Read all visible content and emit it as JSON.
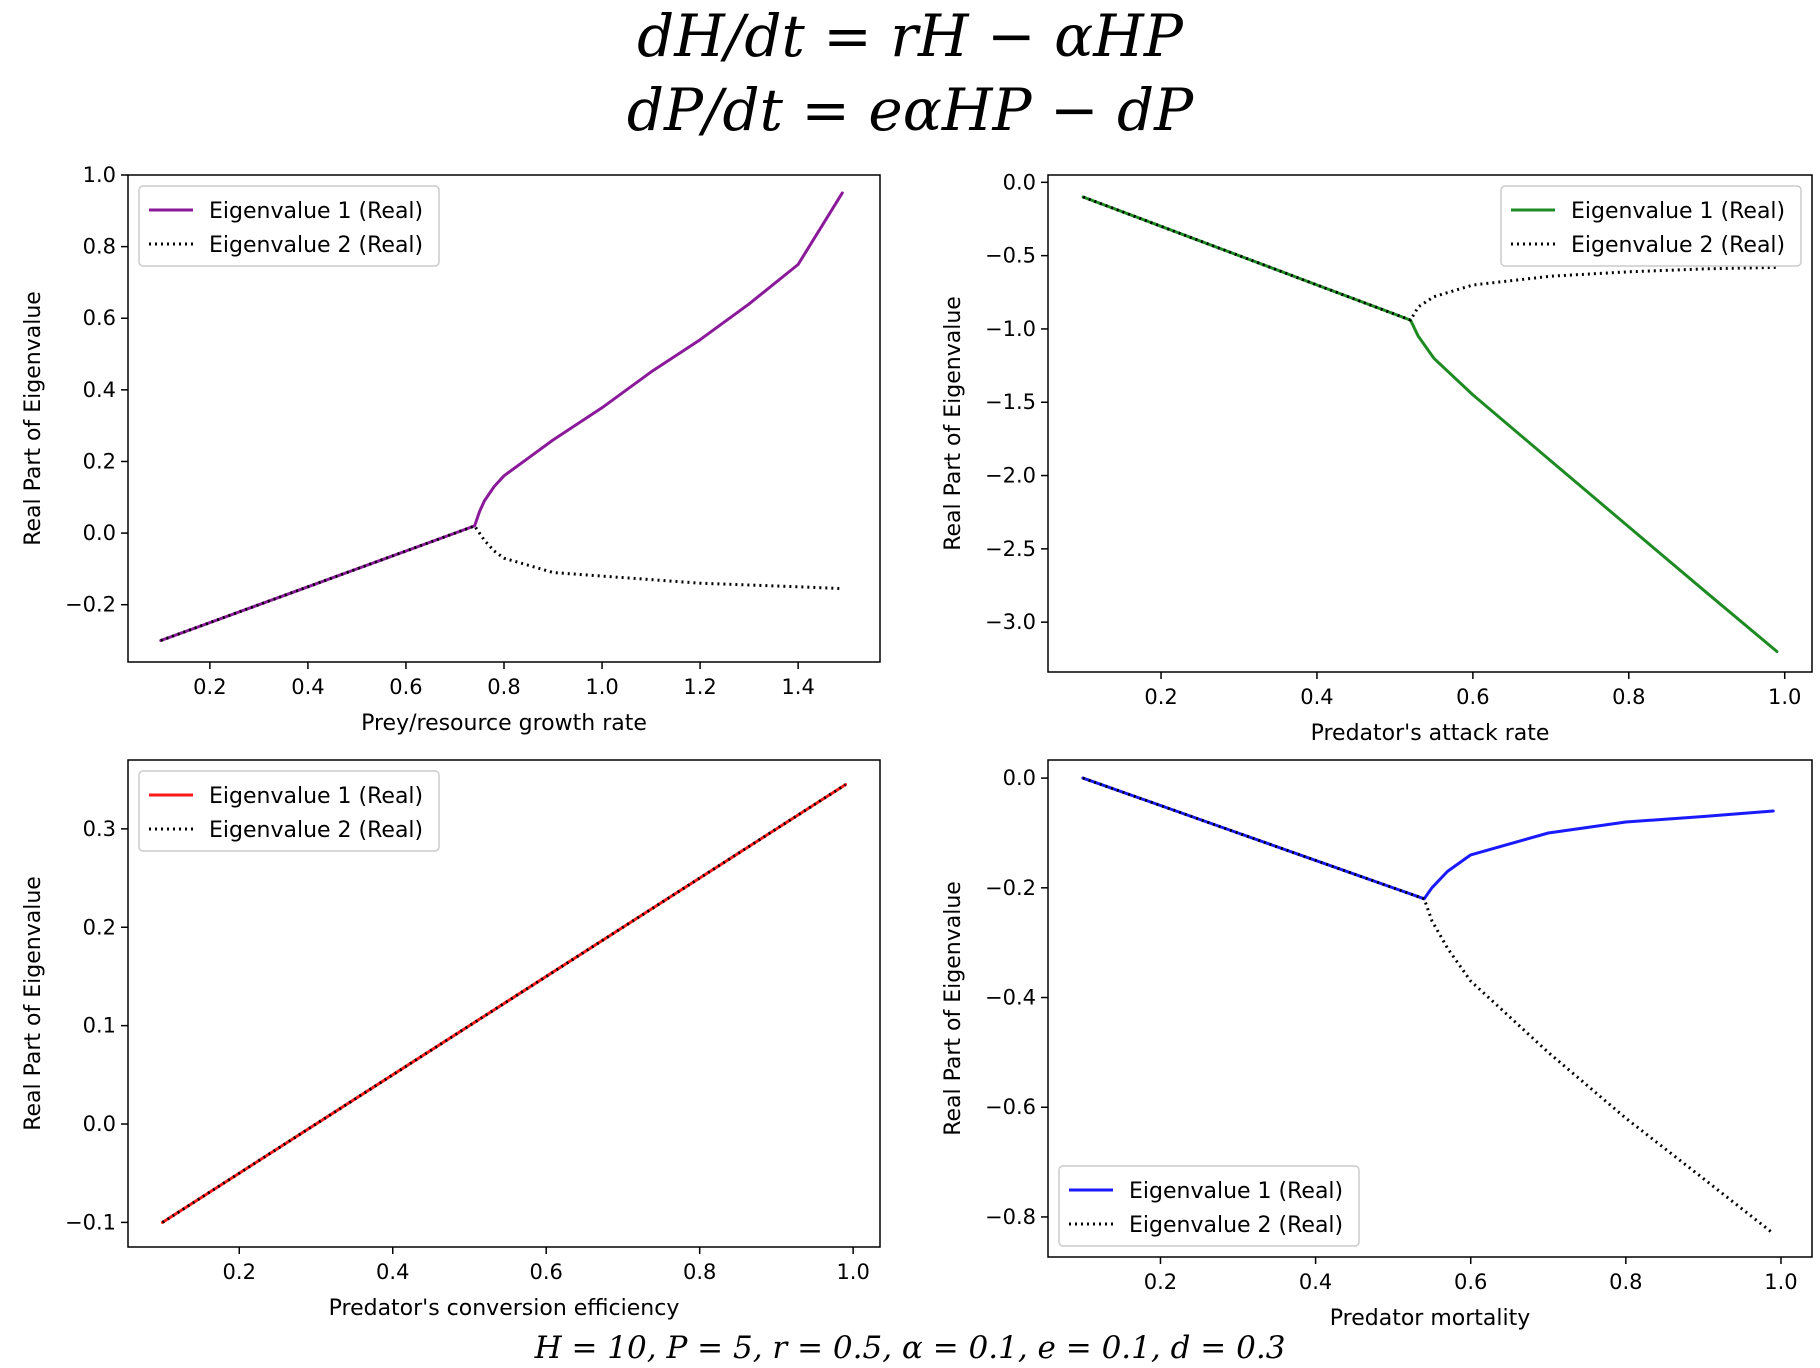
{
  "header": {
    "equation_1": "dH/dt = rH − αHP",
    "equation_2": "dP/dt = eαHP − dP"
  },
  "footer": {
    "parameters": "H = 10, P = 5, r  = 0.5, α = 0.1, e = 0.1, d = 0.3"
  },
  "chart_data": [
    {
      "type": "line",
      "title": "",
      "xlabel": "Prey/resource growth rate",
      "ylabel": "Real Part of Eigenvalue",
      "xlim": [
        0.033,
        1.567
      ],
      "ylim": [
        -0.36,
        1.0
      ],
      "xticks": [
        0.2,
        0.4,
        0.6,
        0.8,
        1.0,
        1.2,
        1.4
      ],
      "xtick_labels": [
        "0.2",
        "0.4",
        "0.6",
        "0.8",
        "1.0",
        "1.2",
        "1.4"
      ],
      "yticks": [
        -0.2,
        0.0,
        0.2,
        0.4,
        0.6,
        0.8,
        1.0
      ],
      "ytick_labels": [
        "−0.2",
        "0.0",
        "0.2",
        "0.4",
        "0.6",
        "0.8",
        "1.0"
      ],
      "legend_position": "upper-left",
      "grid": false,
      "series": [
        {
          "name": "Eigenvalue 1 (Real)",
          "color": "#8B1A9A",
          "style": "solid",
          "x": [
            0.1,
            0.2,
            0.3,
            0.4,
            0.5,
            0.6,
            0.7,
            0.74,
            0.75,
            0.76,
            0.78,
            0.8,
            0.85,
            0.9,
            1.0,
            1.1,
            1.2,
            1.3,
            1.4,
            1.49
          ],
          "y": [
            -0.3,
            -0.25,
            -0.2,
            -0.15,
            -0.1,
            -0.05,
            0.0,
            0.02,
            0.06,
            0.09,
            0.13,
            0.16,
            0.21,
            0.26,
            0.35,
            0.45,
            0.54,
            0.64,
            0.75,
            0.95
          ]
        },
        {
          "name": "Eigenvalue 2 (Real)",
          "color": "#000000",
          "style": "dotted",
          "x": [
            0.1,
            0.2,
            0.3,
            0.4,
            0.5,
            0.6,
            0.7,
            0.74,
            0.75,
            0.76,
            0.78,
            0.8,
            0.85,
            0.9,
            1.0,
            1.1,
            1.2,
            1.3,
            1.4,
            1.49
          ],
          "y": [
            -0.3,
            -0.25,
            -0.2,
            -0.15,
            -0.1,
            -0.05,
            0.0,
            0.02,
            0.0,
            -0.02,
            -0.05,
            -0.07,
            -0.09,
            -0.11,
            -0.12,
            -0.13,
            -0.14,
            -0.145,
            -0.15,
            -0.155
          ]
        }
      ]
    },
    {
      "type": "line",
      "title": "",
      "xlabel": "Predator's attack rate",
      "ylabel": "Real Part of Eigenvalue",
      "xlim": [
        0.055,
        1.035
      ],
      "ylim": [
        -3.34,
        0.05
      ],
      "xticks": [
        0.2,
        0.4,
        0.6,
        0.8,
        1.0
      ],
      "xtick_labels": [
        "0.2",
        "0.4",
        "0.6",
        "0.8",
        "1.0"
      ],
      "yticks": [
        -3.0,
        -2.5,
        -2.0,
        -1.5,
        -1.0,
        -0.5,
        0.0
      ],
      "ytick_labels": [
        "−3.0",
        "−2.5",
        "−2.0",
        "−1.5",
        "−1.0",
        "−0.5",
        "0.0"
      ],
      "legend_position": "upper-right",
      "grid": false,
      "series": [
        {
          "name": "Eigenvalue 1 (Real)",
          "color": "#1E8B22",
          "style": "solid",
          "x": [
            0.1,
            0.2,
            0.3,
            0.4,
            0.52,
            0.53,
            0.55,
            0.6,
            0.7,
            0.8,
            0.9,
            0.99
          ],
          "y": [
            -0.1,
            -0.3,
            -0.5,
            -0.7,
            -0.94,
            -1.05,
            -1.2,
            -1.45,
            -1.9,
            -2.35,
            -2.8,
            -3.2
          ]
        },
        {
          "name": "Eigenvalue 2 (Real)",
          "color": "#000000",
          "style": "dotted",
          "x": [
            0.1,
            0.2,
            0.3,
            0.4,
            0.52,
            0.53,
            0.55,
            0.6,
            0.7,
            0.8,
            0.9,
            0.99
          ],
          "y": [
            -0.1,
            -0.3,
            -0.5,
            -0.7,
            -0.94,
            -0.85,
            -0.78,
            -0.7,
            -0.64,
            -0.61,
            -0.59,
            -0.58
          ]
        }
      ]
    },
    {
      "type": "line",
      "title": "",
      "xlabel": "Predator's conversion efficiency",
      "ylabel": "Real Part of Eigenvalue",
      "xlim": [
        0.055,
        1.035
      ],
      "ylim": [
        -0.125,
        0.37
      ],
      "xticks": [
        0.2,
        0.4,
        0.6,
        0.8,
        1.0
      ],
      "xtick_labels": [
        "0.2",
        "0.4",
        "0.6",
        "0.8",
        "1.0"
      ],
      "yticks": [
        -0.1,
        0.0,
        0.1,
        0.2,
        0.3
      ],
      "ytick_labels": [
        "−0.1",
        "0.0",
        "0.1",
        "0.2",
        "0.3"
      ],
      "legend_position": "upper-left",
      "grid": false,
      "series": [
        {
          "name": "Eigenvalue 1 (Real)",
          "color": "#FF1A1A",
          "style": "solid",
          "x": [
            0.1,
            0.99
          ],
          "y": [
            -0.1,
            0.345
          ]
        },
        {
          "name": "Eigenvalue 2 (Real)",
          "color": "#000000",
          "style": "dotted",
          "x": [
            0.1,
            0.99
          ],
          "y": [
            -0.1,
            0.345
          ]
        }
      ]
    },
    {
      "type": "line",
      "title": "",
      "xlabel": "Predator mortality",
      "ylabel": "Real Part of Eigenvalue",
      "xlim": [
        0.055,
        1.04
      ],
      "ylim": [
        -0.873,
        0.033
      ],
      "xticks": [
        0.2,
        0.4,
        0.6,
        0.8,
        1.0
      ],
      "xtick_labels": [
        "0.2",
        "0.4",
        "0.6",
        "0.8",
        "1.0"
      ],
      "yticks": [
        -0.8,
        -0.6,
        -0.4,
        -0.2,
        0.0
      ],
      "ytick_labels": [
        "−0.8",
        "−0.6",
        "−0.4",
        "−0.2",
        "0.0"
      ],
      "legend_position": "lower-left",
      "grid": false,
      "series": [
        {
          "name": "Eigenvalue 1 (Real)",
          "color": "#1A1AFF",
          "style": "solid",
          "x": [
            0.1,
            0.2,
            0.3,
            0.4,
            0.54,
            0.55,
            0.57,
            0.6,
            0.7,
            0.8,
            0.9,
            0.99
          ],
          "y": [
            0.0,
            -0.05,
            -0.1,
            -0.15,
            -0.22,
            -0.2,
            -0.17,
            -0.14,
            -0.1,
            -0.08,
            -0.07,
            -0.06
          ]
        },
        {
          "name": "Eigenvalue 2 (Real)",
          "color": "#000000",
          "style": "dotted",
          "x": [
            0.1,
            0.2,
            0.3,
            0.4,
            0.54,
            0.55,
            0.57,
            0.6,
            0.7,
            0.8,
            0.9,
            0.99
          ],
          "y": [
            0.0,
            -0.05,
            -0.1,
            -0.15,
            -0.22,
            -0.26,
            -0.31,
            -0.37,
            -0.5,
            -0.62,
            -0.73,
            -0.83
          ]
        }
      ]
    }
  ]
}
